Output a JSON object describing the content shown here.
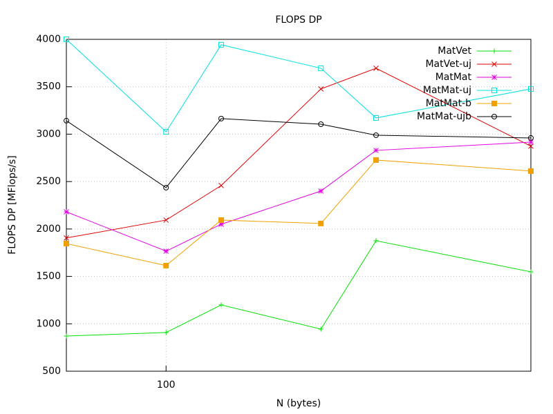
{
  "chart_data": {
    "type": "line",
    "title": "FLOPS DP",
    "xlabel": "N (bytes)",
    "ylabel": "FLOPS DP [MFlops/s]",
    "x": [
      64,
      100,
      128,
      200,
      256,
      512
    ],
    "xscale": "log",
    "xlim": [
      64,
      512
    ],
    "xticks": [
      100
    ],
    "ylim": [
      500,
      4000
    ],
    "yticks": [
      500,
      1000,
      1500,
      2000,
      2500,
      3000,
      3500,
      4000
    ],
    "grid": true,
    "legend": "top-right",
    "series": [
      {
        "name": "MatVet",
        "color": "#00e000",
        "marker": "plus",
        "values": [
          871,
          908,
          1199,
          944,
          1876,
          1548
        ]
      },
      {
        "name": "MatVet-uj",
        "color": "#e00000",
        "marker": "cross",
        "values": [
          1905,
          2094,
          2458,
          3477,
          3695,
          2873
        ]
      },
      {
        "name": "MatMat",
        "color": "#e000e0",
        "marker": "star",
        "values": [
          2181,
          1766,
          2050,
          2400,
          2829,
          2916
        ]
      },
      {
        "name": "MatMat-uj",
        "color": "#00e0e0",
        "marker": "square",
        "values": [
          4000,
          3025,
          3943,
          3695,
          3171,
          3477
        ]
      },
      {
        "name": "MatMat-b",
        "color": "#f0a000",
        "marker": "filled-square",
        "values": [
          1846,
          1614,
          2094,
          2058,
          2727,
          2611
        ]
      },
      {
        "name": "MatMat-ujb",
        "color": "#000000",
        "marker": "circle",
        "values": [
          3142,
          2436,
          3164,
          3105,
          2989,
          2960
        ]
      }
    ]
  }
}
